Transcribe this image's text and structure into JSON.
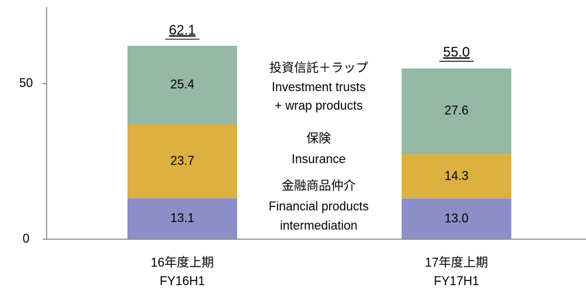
{
  "chart_data": {
    "type": "stacked_bar",
    "categories": [
      [
        "16年度上期",
        "FY16H1"
      ],
      [
        "17年度上期",
        "FY17H1"
      ]
    ],
    "series": [
      {
        "name": [
          "金融商品仲介",
          "Financial products",
          "intermediation"
        ],
        "color": "#8c8ec8",
        "values": [
          13.1,
          13
        ],
        "value_labels": [
          "13.1",
          "13.0"
        ]
      },
      {
        "name": [
          "保険",
          "Insurance"
        ],
        "color": "#dcb13f",
        "values": [
          23.7,
          14.3
        ],
        "value_labels": [
          "23.7",
          "14.3"
        ]
      },
      {
        "name": [
          "投資信託＋ラップ",
          "Investment trusts",
          "+ wrap products"
        ],
        "color": "#96b8a7",
        "values": [
          25.4,
          27.6
        ],
        "value_labels": [
          "25.4",
          "27.6"
        ]
      }
    ],
    "totals": [
      62.1,
      55
    ],
    "total_labels": [
      "62.1",
      "55.0"
    ],
    "ylim": [
      0,
      74.7
    ],
    "yticks": [
      0,
      50
    ]
  }
}
